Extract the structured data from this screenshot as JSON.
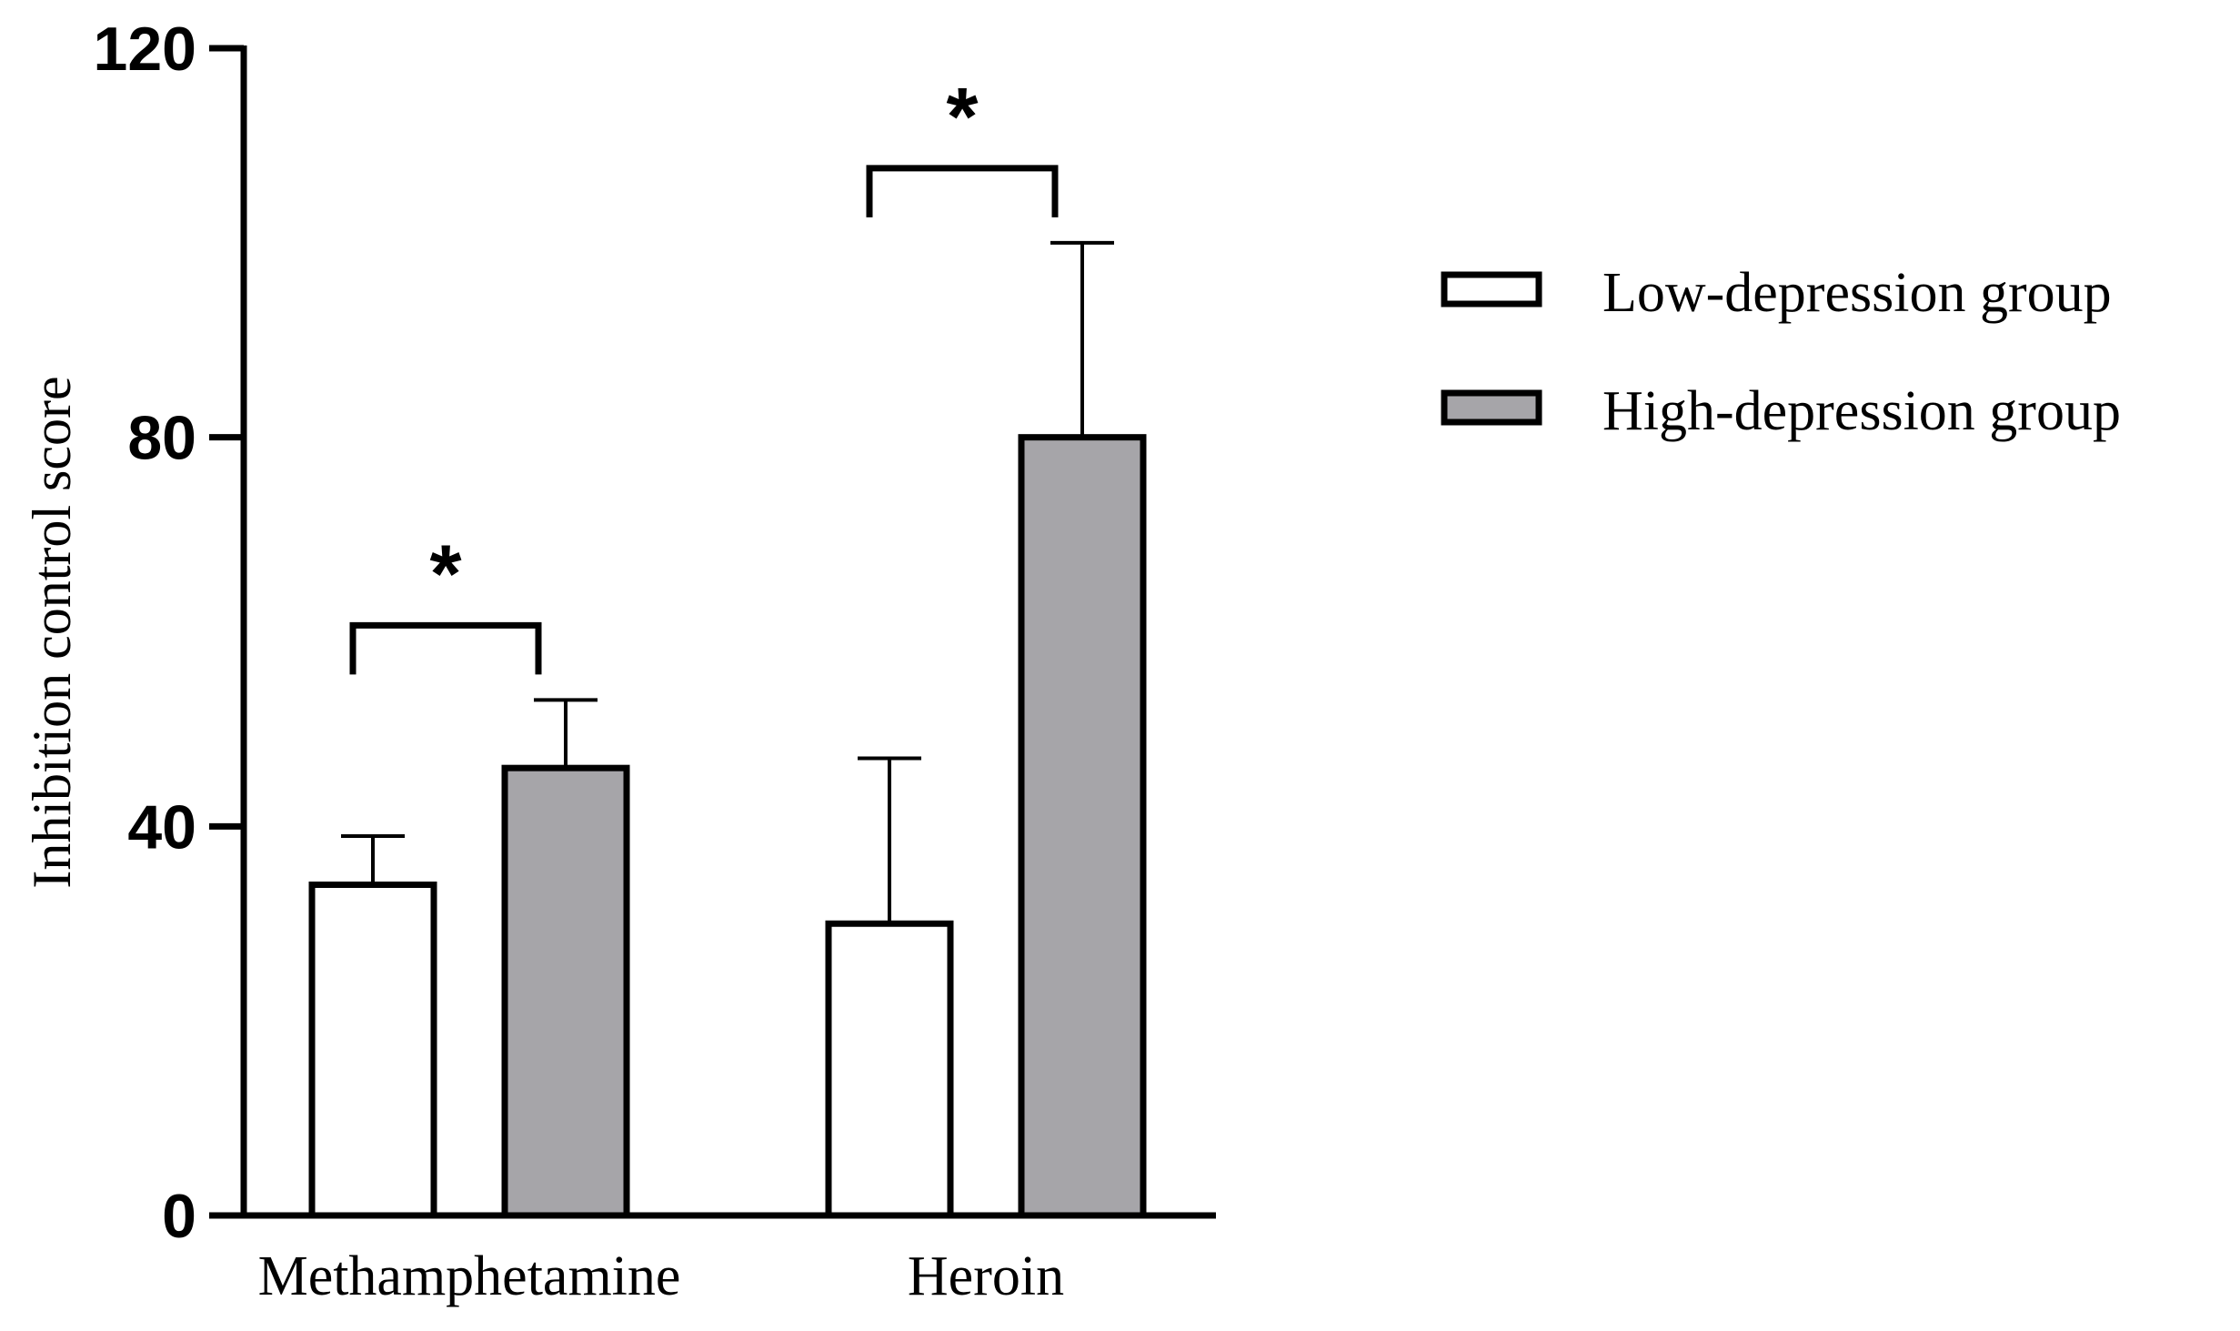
{
  "chart_data": {
    "type": "bar",
    "ylabel": "Inhibition control score",
    "xlabel": "",
    "ylim": [
      0,
      120
    ],
    "yticks": [
      0,
      40,
      80,
      120
    ],
    "categories": [
      "Methamphetamine",
      "Heroin"
    ],
    "series": [
      {
        "name": "Low-depression group",
        "color": "#ffffff",
        "values": [
          34,
          30
        ],
        "errors": [
          5,
          17
        ]
      },
      {
        "name": "High-depression group",
        "color": "#a6a5a9",
        "values": [
          46,
          80
        ],
        "errors": [
          7,
          20
        ]
      }
    ],
    "significance": [
      {
        "category": "Methamphetamine",
        "label": "*"
      },
      {
        "category": "Heroin",
        "label": "*"
      }
    ],
    "legend_position": "top-right",
    "grid": false
  }
}
